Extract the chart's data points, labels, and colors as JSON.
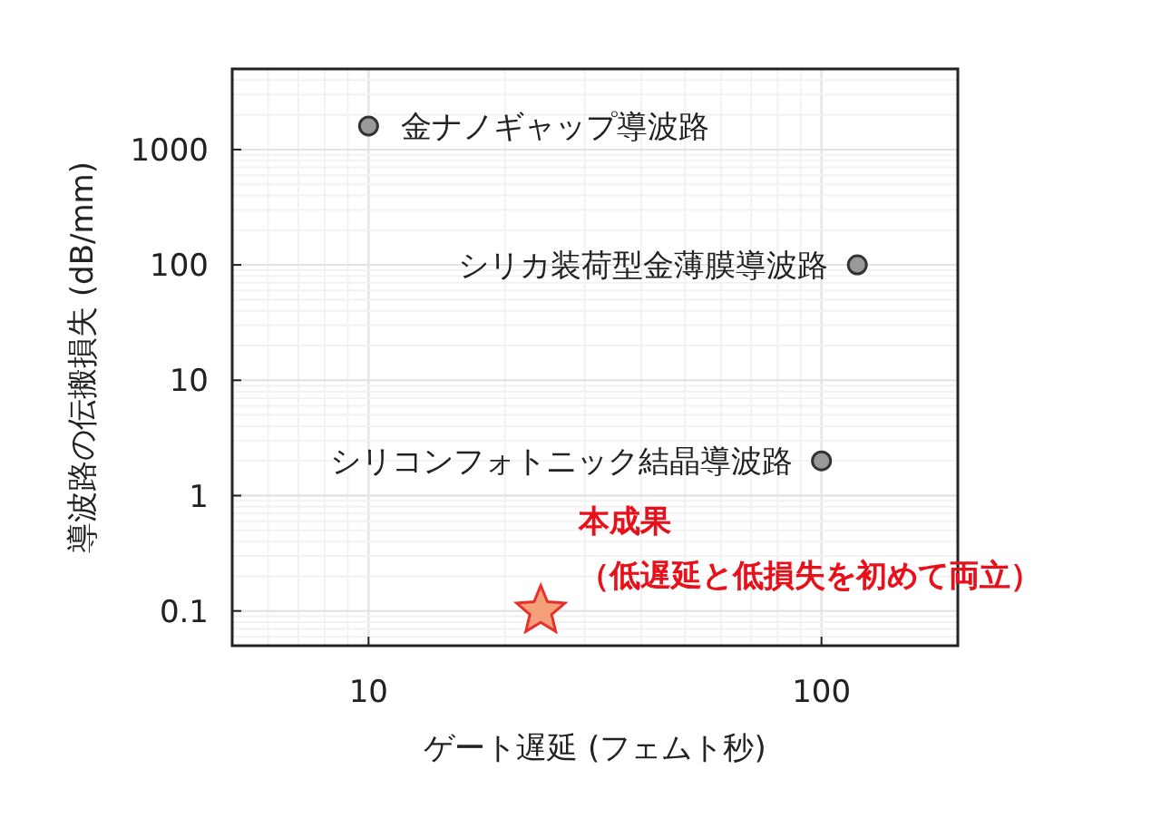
{
  "chart_data": {
    "type": "scatter",
    "xlabel": "ゲート遅延 (フェムト秒)",
    "ylabel": "導波路の伝搬損失 (dB/mm)",
    "log": "xy",
    "grid": true,
    "xlim": [
      5,
      200
    ],
    "xticks": [
      10,
      100
    ],
    "ylim": [
      0.05,
      5000
    ],
    "yticks": [
      0.1,
      1,
      10,
      100,
      1000
    ],
    "series": [
      {
        "color": "#999999",
        "marker": "circle",
        "x": [
          10,
          120,
          100
        ],
        "values": [
          1600,
          100,
          2
        ]
      },
      {
        "color": "#f4a07a",
        "marker": "star",
        "x": [
          24
        ],
        "values": [
          0.1
        ]
      }
    ],
    "annotations": [
      {
        "text": "金ナノギャップ導波路",
        "x": 10,
        "y": 1600
      },
      {
        "text": "シリカ装荷型金薄膜導波路",
        "x": 120,
        "y": 100
      },
      {
        "text": "シリコンフォトニック結晶導波路",
        "x": 100,
        "y": 2
      },
      {
        "text": "本成果",
        "x": 24,
        "y": 0.1
      },
      {
        "text": "（低遅延と低損失を初めて両立）",
        "x": 24,
        "y": 0.1
      }
    ]
  }
}
